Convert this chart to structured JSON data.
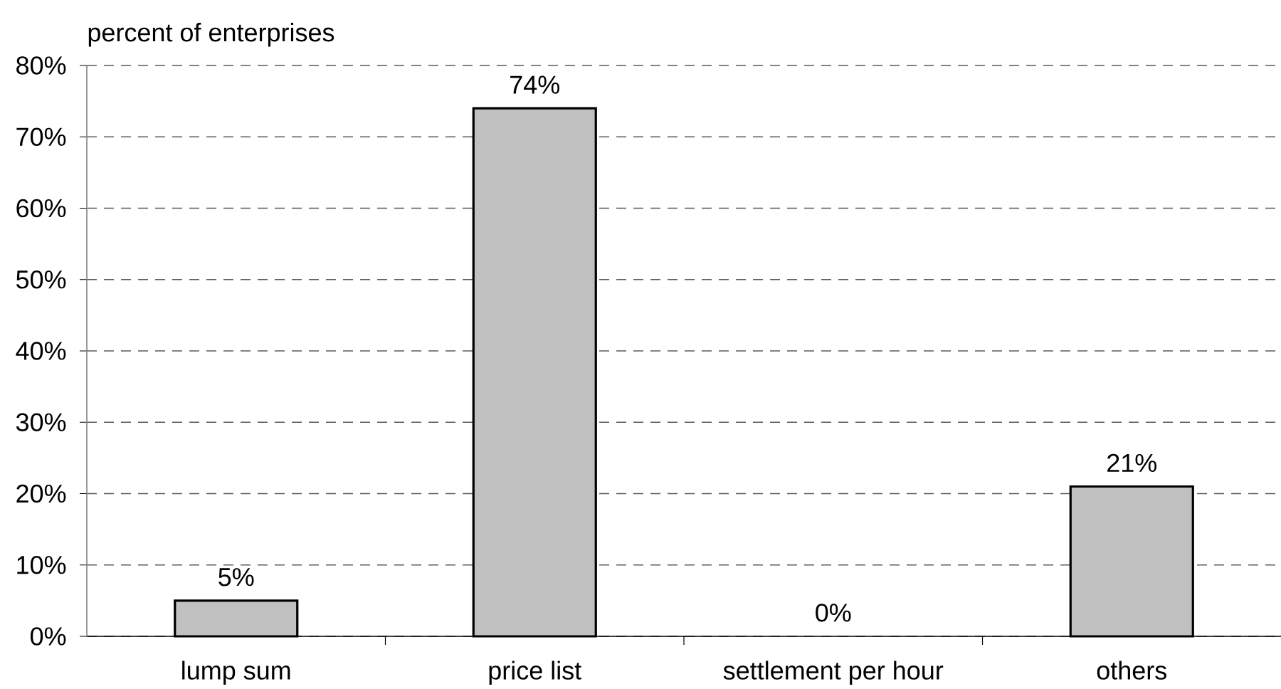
{
  "chart_data": {
    "type": "bar",
    "ylabel": "percent of enterprises",
    "categories": [
      "lump sum",
      "price list",
      "settlement per hour",
      "others"
    ],
    "values": [
      5,
      74,
      0,
      21
    ],
    "value_labels": [
      "5%",
      "74%",
      "0%",
      "21%"
    ],
    "color": "#c0c0c0",
    "ylim": [
      0,
      80
    ],
    "yticks": [
      {
        "value": 0,
        "label": "0%"
      },
      {
        "value": 10,
        "label": "10%"
      },
      {
        "value": 20,
        "label": "20%"
      },
      {
        "value": 30,
        "label": "30%"
      },
      {
        "value": 40,
        "label": "40%"
      },
      {
        "value": 50,
        "label": "50%"
      },
      {
        "value": 60,
        "label": "60%"
      },
      {
        "value": 70,
        "label": "70%"
      },
      {
        "value": 80,
        "label": "80%"
      }
    ],
    "grid": "y"
  }
}
